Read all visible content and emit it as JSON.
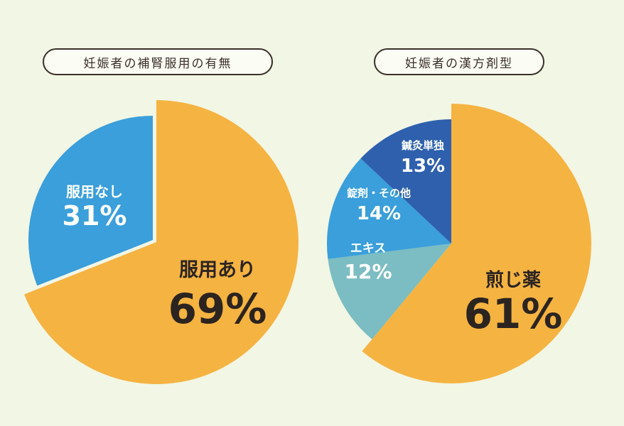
{
  "charts": [
    {
      "title": "妊娠者の補腎服用の有無",
      "chart_data": {
        "type": "pie",
        "title": "妊娠者の補腎服用の有無",
        "slices": [
          {
            "label": "服用あり",
            "value": 69,
            "display": "69%",
            "color": "#f5b342"
          },
          {
            "label": "服用なし",
            "value": 31,
            "display": "31%",
            "color": "#3a9fdb"
          }
        ]
      }
    },
    {
      "title": "妊娠者の漢方剤型",
      "chart_data": {
        "type": "pie",
        "title": "妊娠者の漢方剤型",
        "slices": [
          {
            "label": "煎じ薬",
            "value": 61,
            "display": "61%",
            "color": "#f5b342"
          },
          {
            "label": "エキス",
            "value": 12,
            "display": "12%",
            "color": "#7bbdc2"
          },
          {
            "label": "錠剤・その他",
            "value": 14,
            "display": "14%",
            "color": "#3a9fdb"
          },
          {
            "label": "鍼灸単独",
            "value": 13,
            "display": "13%",
            "color": "#2e60ad"
          }
        ]
      }
    }
  ]
}
